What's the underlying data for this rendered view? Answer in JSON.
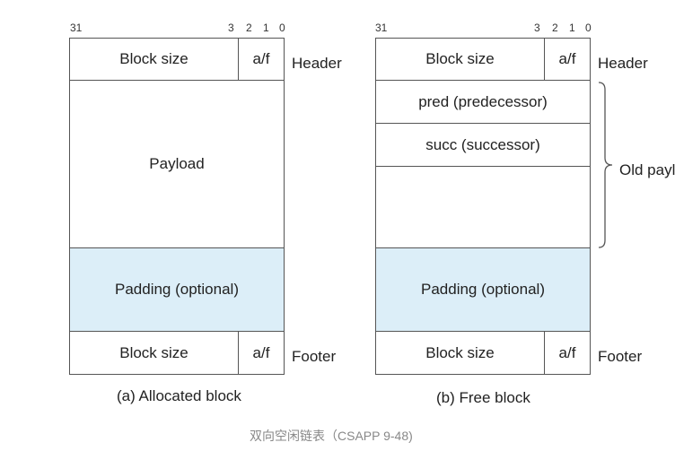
{
  "bit_labels": [
    "31",
    "3",
    "2",
    "1",
    "0"
  ],
  "allocated": {
    "header_size": "Block size",
    "header_flag": "a/f",
    "payload": "Payload",
    "padding": "Padding (optional)",
    "footer_size": "Block size",
    "footer_flag": "a/f",
    "header_label": "Header",
    "footer_label": "Footer",
    "caption": "(a) Allocated block"
  },
  "free": {
    "header_size": "Block size",
    "header_flag": "a/f",
    "pred": "pred (predecessor)",
    "succ": "succ (successor)",
    "padding": "Padding (optional)",
    "footer_size": "Block size",
    "footer_flag": "a/f",
    "header_label": "Header",
    "footer_label": "Footer",
    "brace_label": "Old payl",
    "caption": "(b) Free block"
  },
  "footnote": "双向空闲链表（CSAPP 9-48)",
  "colors": {
    "padding_fill": "#dceef8",
    "border": "#555555"
  }
}
